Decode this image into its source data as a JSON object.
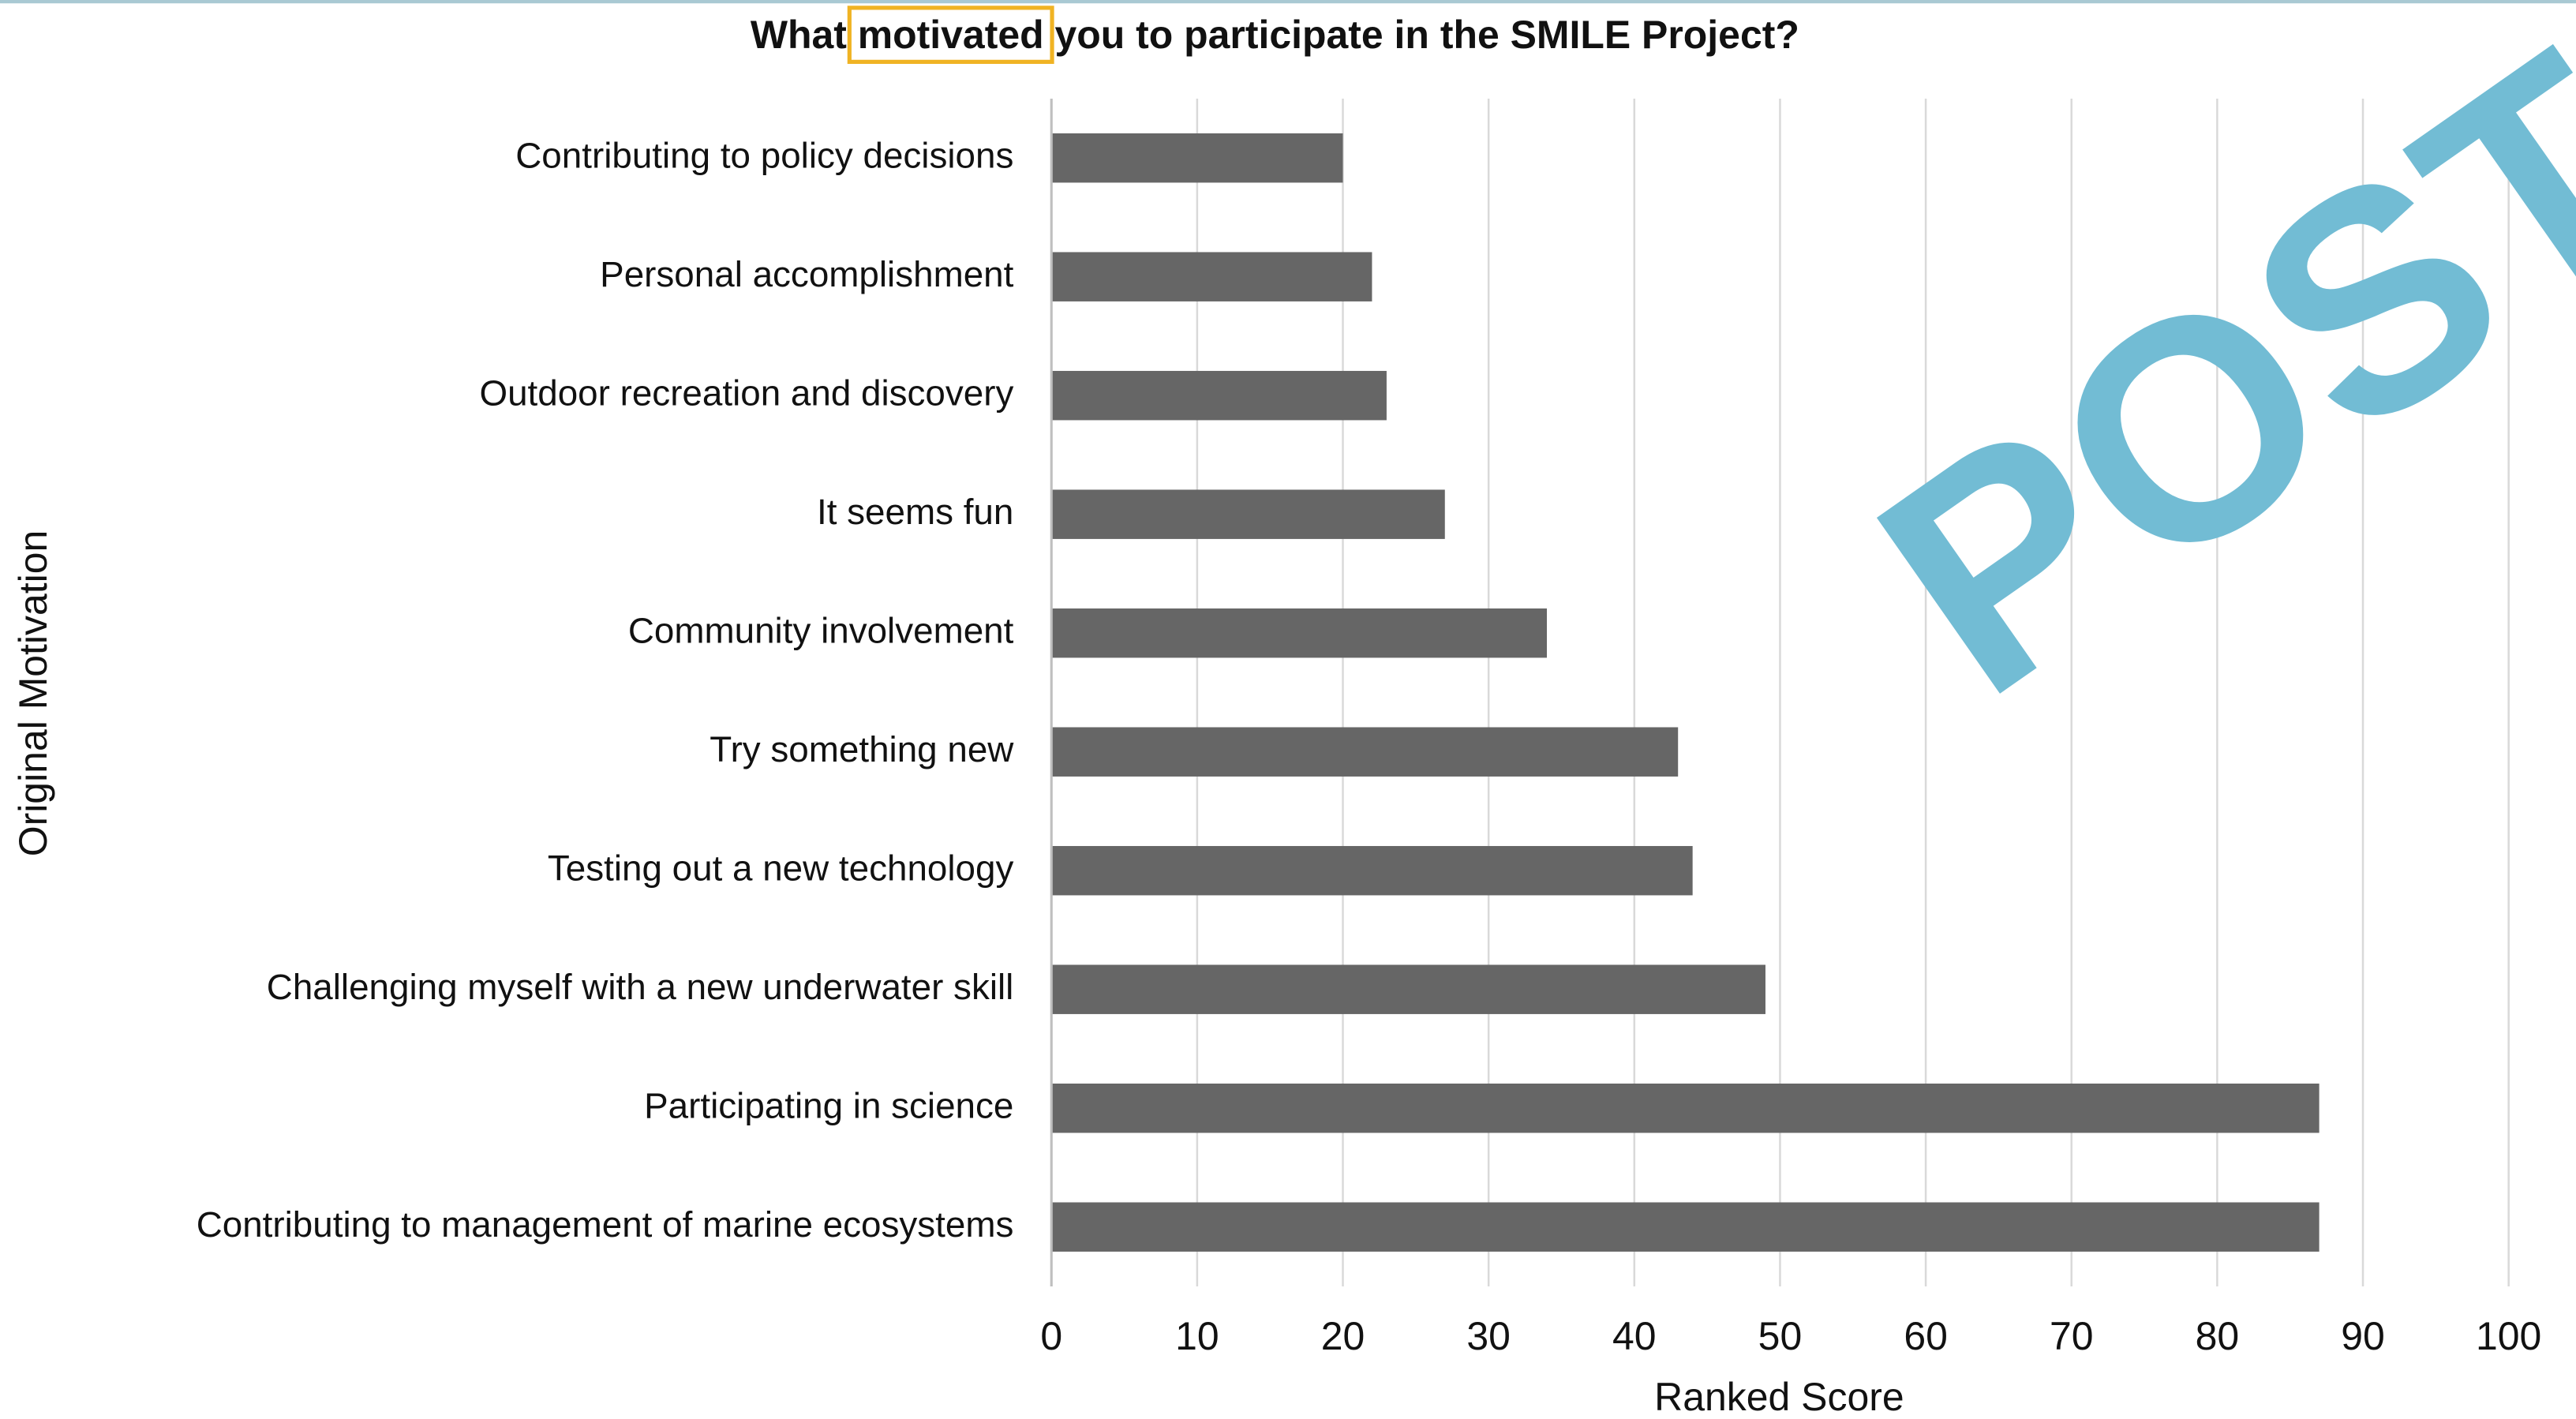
{
  "chart_data": {
    "type": "barh",
    "title": {
      "before": "What",
      "highlight": "motivated",
      "after": "you to participate in the SMILE Project?"
    },
    "xlabel": "Ranked Score",
    "ylabel": "Original Motivation",
    "watermark": "POST",
    "categories": [
      "Contributing to policy decisions",
      "Personal accomplishment",
      "Outdoor recreation and discovery",
      "It seems fun",
      "Community involvement",
      "Try something new",
      "Testing out a new technology",
      "Challenging myself with a new underwater skill",
      "Participating in science",
      "Contributing to management of marine ecosystems"
    ],
    "values": [
      20,
      22,
      23,
      27,
      34,
      43,
      44,
      49,
      87,
      87
    ],
    "color": "#666666",
    "xlim": [
      0,
      100
    ],
    "xticks": [
      0,
      10,
      20,
      30,
      40,
      50,
      60,
      70,
      80,
      90,
      100
    ],
    "grid": true
  }
}
